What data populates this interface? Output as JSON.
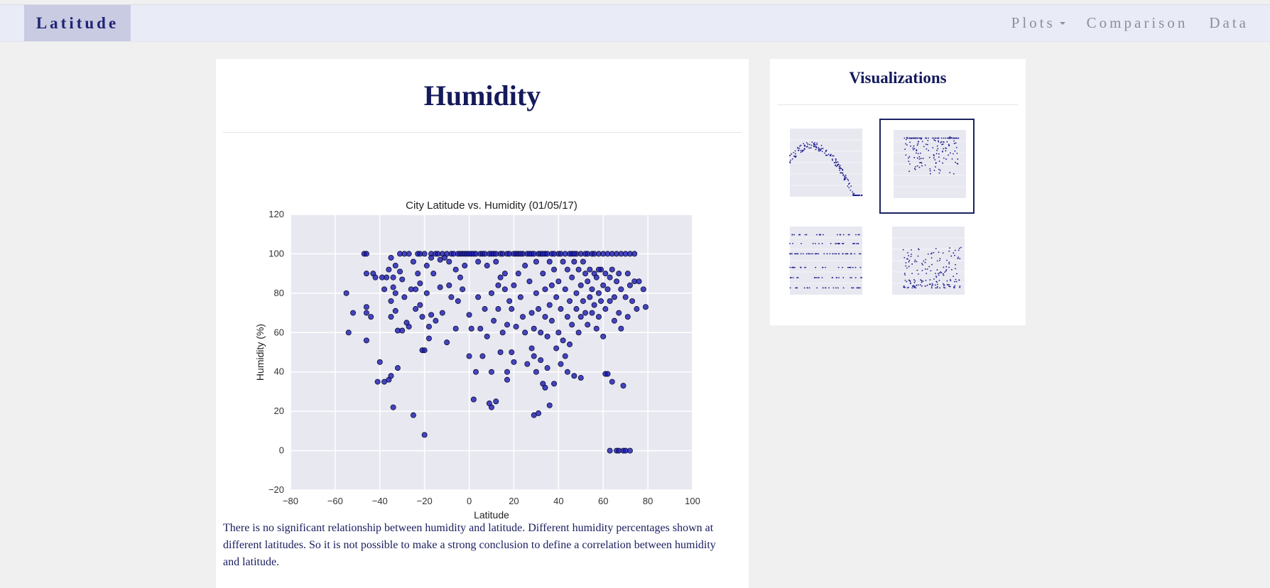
{
  "navbar": {
    "brand": "Latitude",
    "links": [
      {
        "label": "Plots",
        "has_caret": true
      },
      {
        "label": "Comparison",
        "has_caret": false
      },
      {
        "label": "Data",
        "has_caret": false
      }
    ]
  },
  "main": {
    "title": "Humidity",
    "description": "There is no significant relationship between humidity and latitude. Different humidity percentages shown at different latitudes. So it is not possible to make a strong conclusion to define a correlation between humidity and latitude."
  },
  "sidebar": {
    "title": "Visualizations",
    "thumbnails": [
      {
        "name": "temperature",
        "active": false
      },
      {
        "name": "humidity",
        "active": true
      },
      {
        "name": "cloudiness",
        "active": false
      },
      {
        "name": "wind-speed",
        "active": false
      }
    ]
  },
  "colors": {
    "brand_text": "#1f2472",
    "title": "#151a5c",
    "point_fill": "#1a1ab4",
    "plot_bg": "#e8e8f1"
  },
  "chart_data": {
    "type": "scatter",
    "title": "City Latitude vs. Humidity (01/05/17)",
    "xlabel": "Latitude",
    "ylabel": "Humidity (%)",
    "xlim": [
      -80,
      100
    ],
    "ylim": [
      -20,
      120
    ],
    "xticks": [
      -80,
      -60,
      -40,
      -20,
      0,
      20,
      40,
      60,
      80,
      100
    ],
    "yticks": [
      -20,
      0,
      20,
      40,
      60,
      80,
      100,
      120
    ],
    "grid": true,
    "points": [
      [
        -55,
        80
      ],
      [
        -54,
        60
      ],
      [
        -52,
        70
      ],
      [
        -47,
        100
      ],
      [
        -46,
        100
      ],
      [
        -46,
        90
      ],
      [
        -46,
        73
      ],
      [
        -46,
        70
      ],
      [
        -46,
        56
      ],
      [
        -44,
        68
      ],
      [
        -43,
        90
      ],
      [
        -41,
        35
      ],
      [
        -40,
        45
      ],
      [
        -39,
        88
      ],
      [
        -38,
        35
      ],
      [
        -38,
        82
      ],
      [
        -37,
        88
      ],
      [
        -36,
        92
      ],
      [
        -36,
        36
      ],
      [
        -35,
        98
      ],
      [
        -35,
        76
      ],
      [
        -35,
        68
      ],
      [
        -35,
        38
      ],
      [
        -34,
        22
      ],
      [
        -34,
        83
      ],
      [
        -34,
        88
      ],
      [
        -33,
        94
      ],
      [
        -33,
        80
      ],
      [
        -33,
        71
      ],
      [
        -32,
        61
      ],
      [
        -32,
        42
      ],
      [
        -31,
        100
      ],
      [
        -31,
        91
      ],
      [
        -30,
        87
      ],
      [
        -30,
        61
      ],
      [
        -29,
        100
      ],
      [
        -29,
        78
      ],
      [
        -28,
        65
      ],
      [
        -27,
        63
      ],
      [
        -26,
        82
      ],
      [
        -25,
        96
      ],
      [
        -25,
        18
      ],
      [
        -24,
        72
      ],
      [
        -24,
        82
      ],
      [
        -23,
        100
      ],
      [
        -23,
        90
      ],
      [
        -22,
        100
      ],
      [
        -22,
        85
      ],
      [
        -22,
        74
      ],
      [
        -21,
        68
      ],
      [
        -21,
        51
      ],
      [
        -20,
        8
      ],
      [
        -20,
        100
      ],
      [
        -20,
        51
      ],
      [
        -19,
        94
      ],
      [
        -19,
        80
      ],
      [
        -18,
        63
      ],
      [
        -18,
        57
      ],
      [
        -17,
        100
      ],
      [
        -17,
        98
      ],
      [
        -17,
        69
      ],
      [
        -16,
        90
      ],
      [
        -15,
        100
      ],
      [
        -15,
        66
      ],
      [
        -14,
        100
      ],
      [
        -13,
        97
      ],
      [
        -13,
        83
      ],
      [
        -12,
        100
      ],
      [
        -12,
        70
      ],
      [
        -11,
        98
      ],
      [
        -10,
        100
      ],
      [
        -10,
        55
      ],
      [
        -9,
        96
      ],
      [
        -9,
        84
      ],
      [
        -8,
        100
      ],
      [
        -8,
        78
      ],
      [
        -7,
        100
      ],
      [
        -6,
        92
      ],
      [
        -6,
        62
      ],
      [
        -5,
        100
      ],
      [
        -5,
        76
      ],
      [
        -4,
        100
      ],
      [
        -4,
        88
      ],
      [
        -3,
        100
      ],
      [
        -3,
        82
      ],
      [
        -2,
        100
      ],
      [
        -2,
        94
      ],
      [
        -1,
        100
      ],
      [
        0,
        100
      ],
      [
        0,
        69
      ],
      [
        0,
        48
      ],
      [
        1,
        100
      ],
      [
        1,
        62
      ],
      [
        2,
        100
      ],
      [
        2,
        26
      ],
      [
        3,
        100
      ],
      [
        3,
        40
      ],
      [
        4,
        96
      ],
      [
        4,
        78
      ],
      [
        5,
        100
      ],
      [
        5,
        62
      ],
      [
        6,
        100
      ],
      [
        6,
        48
      ],
      [
        7,
        100
      ],
      [
        7,
        72
      ],
      [
        8,
        94
      ],
      [
        8,
        58
      ],
      [
        9,
        100
      ],
      [
        9,
        24
      ],
      [
        10,
        100
      ],
      [
        10,
        80
      ],
      [
        10,
        40
      ],
      [
        10,
        22
      ],
      [
        11,
        100
      ],
      [
        11,
        66
      ],
      [
        12,
        100
      ],
      [
        12,
        25
      ],
      [
        12,
        96
      ],
      [
        13,
        72
      ],
      [
        13,
        84
      ],
      [
        14,
        100
      ],
      [
        14,
        50
      ],
      [
        15,
        100
      ],
      [
        15,
        60
      ],
      [
        16,
        90
      ],
      [
        16,
        82
      ],
      [
        17,
        100
      ],
      [
        17,
        64
      ],
      [
        17,
        40
      ],
      [
        17,
        36
      ],
      [
        18,
        100
      ],
      [
        18,
        76
      ],
      [
        19,
        72
      ],
      [
        19,
        50
      ],
      [
        20,
        100
      ],
      [
        20,
        84
      ],
      [
        20,
        45
      ],
      [
        21,
        100
      ],
      [
        21,
        63
      ],
      [
        22,
        100
      ],
      [
        22,
        90
      ],
      [
        23,
        78
      ],
      [
        24,
        100
      ],
      [
        24,
        68
      ],
      [
        25,
        94
      ],
      [
        25,
        60
      ],
      [
        26,
        100
      ],
      [
        26,
        44
      ],
      [
        27,
        100
      ],
      [
        27,
        86
      ],
      [
        28,
        100
      ],
      [
        28,
        70
      ],
      [
        28,
        52
      ],
      [
        29,
        100
      ],
      [
        29,
        62
      ],
      [
        29,
        48
      ],
      [
        29,
        18
      ],
      [
        30,
        96
      ],
      [
        30,
        80
      ],
      [
        30,
        40
      ],
      [
        31,
        100
      ],
      [
        31,
        72
      ],
      [
        31,
        19
      ],
      [
        32,
        100
      ],
      [
        32,
        60
      ],
      [
        32,
        46
      ],
      [
        33,
        90
      ],
      [
        33,
        34
      ],
      [
        34,
        100
      ],
      [
        34,
        82
      ],
      [
        34,
        68
      ],
      [
        34,
        32
      ],
      [
        35,
        100
      ],
      [
        35,
        58
      ],
      [
        35,
        42
      ],
      [
        36,
        96
      ],
      [
        36,
        74
      ],
      [
        36,
        23
      ],
      [
        37,
        100
      ],
      [
        37,
        84
      ],
      [
        37,
        66
      ],
      [
        38,
        100
      ],
      [
        38,
        92
      ],
      [
        38,
        34
      ],
      [
        39,
        78
      ],
      [
        39,
        52
      ],
      [
        40,
        100
      ],
      [
        40,
        86
      ],
      [
        40,
        60
      ],
      [
        41,
        100
      ],
      [
        41,
        72
      ],
      [
        41,
        44
      ],
      [
        42,
        96
      ],
      [
        42,
        56
      ],
      [
        43,
        100
      ],
      [
        43,
        82
      ],
      [
        43,
        48
      ],
      [
        44,
        92
      ],
      [
        44,
        68
      ],
      [
        44,
        40
      ],
      [
        45,
        100
      ],
      [
        45,
        76
      ],
      [
        45,
        54
      ],
      [
        46,
        100
      ],
      [
        46,
        88
      ],
      [
        46,
        64
      ],
      [
        47,
        38
      ],
      [
        47,
        96
      ],
      [
        48,
        100
      ],
      [
        48,
        72
      ],
      [
        48,
        80
      ],
      [
        49,
        92
      ],
      [
        49,
        60
      ],
      [
        50,
        100
      ],
      [
        50,
        84
      ],
      [
        50,
        68
      ],
      [
        50,
        37
      ],
      [
        51,
        96
      ],
      [
        51,
        76
      ],
      [
        52,
        100
      ],
      [
        52,
        90
      ],
      [
        52,
        70
      ],
      [
        53,
        100
      ],
      [
        53,
        86
      ],
      [
        53,
        64
      ],
      [
        54,
        92
      ],
      [
        54,
        78
      ],
      [
        55,
        100
      ],
      [
        55,
        82
      ],
      [
        55,
        70
      ],
      [
        56,
        100
      ],
      [
        56,
        90
      ],
      [
        56,
        74
      ],
      [
        57,
        88
      ],
      [
        57,
        62
      ],
      [
        58,
        100
      ],
      [
        58,
        80
      ],
      [
        58,
        68
      ],
      [
        59,
        92
      ],
      [
        59,
        76
      ],
      [
        60,
        100
      ],
      [
        60,
        84
      ],
      [
        60,
        58
      ],
      [
        61,
        90
      ],
      [
        61,
        72
      ],
      [
        61,
        39
      ],
      [
        62,
        100
      ],
      [
        62,
        82
      ],
      [
        62,
        39
      ],
      [
        63,
        88
      ],
      [
        63,
        76
      ],
      [
        63,
        0
      ],
      [
        64,
        100
      ],
      [
        64,
        92
      ],
      [
        64,
        35
      ],
      [
        65,
        78
      ],
      [
        65,
        66
      ],
      [
        66,
        100
      ],
      [
        66,
        86
      ],
      [
        66,
        0
      ],
      [
        67,
        90
      ],
      [
        67,
        70
      ],
      [
        67,
        0
      ],
      [
        68,
        100
      ],
      [
        68,
        82
      ],
      [
        68,
        62
      ],
      [
        69,
        0
      ],
      [
        69,
        33
      ],
      [
        70,
        100
      ],
      [
        70,
        78
      ],
      [
        70,
        0
      ],
      [
        71,
        90
      ],
      [
        71,
        68
      ],
      [
        72,
        100
      ],
      [
        72,
        0
      ],
      [
        72,
        84
      ],
      [
        73,
        76
      ],
      [
        74,
        100
      ],
      [
        74,
        86
      ],
      [
        75,
        72
      ],
      [
        76,
        86
      ],
      [
        78,
        82
      ],
      [
        79,
        73
      ],
      [
        -42,
        88
      ],
      [
        -27,
        100
      ],
      [
        14,
        88
      ],
      [
        23,
        100
      ],
      [
        33,
        100
      ],
      [
        47,
        100
      ],
      [
        58,
        92
      ]
    ]
  }
}
